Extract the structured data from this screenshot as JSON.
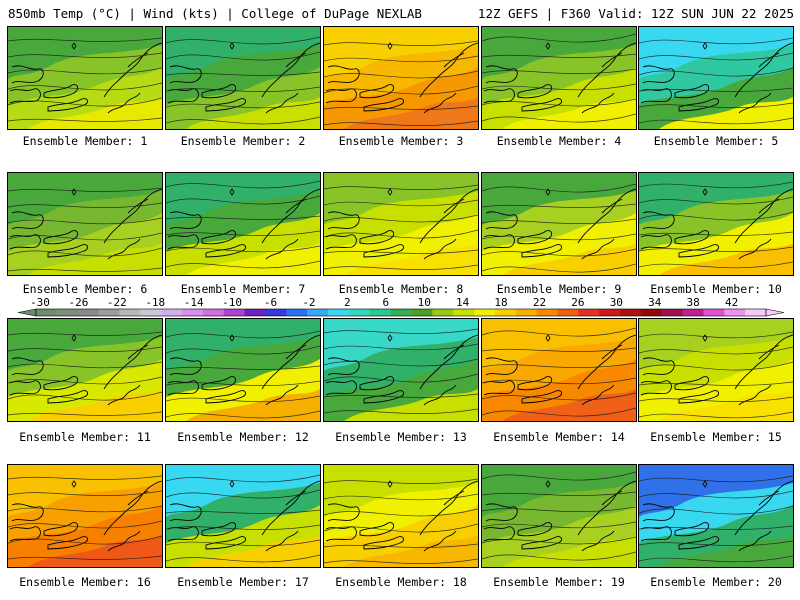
{
  "header": {
    "left": "850mb Temp (°C) | Wind (kts) | College of DuPage NEXLAB",
    "right": "12Z GEFS | F360 Valid: 12Z SUN JUN 22 2025"
  },
  "colorbar": {
    "labels": [
      "-30",
      "-26",
      "-22",
      "-18",
      "-14",
      "-10",
      "-6",
      "-2",
      "2",
      "6",
      "10",
      "14",
      "18",
      "22",
      "26",
      "30",
      "34",
      "38",
      "42"
    ],
    "colors": [
      "#6e8c6e",
      "#7a917a",
      "#8a8a8a",
      "#9d9d9d",
      "#b8b8b8",
      "#c8c8d8",
      "#d0b0e8",
      "#d890f0",
      "#d070e0",
      "#b040d0",
      "#7020c0",
      "#3838e0",
      "#2870f0",
      "#38a8f8",
      "#38d8f0",
      "#30d8c0",
      "#28c890",
      "#30b050",
      "#48a028",
      "#98c810",
      "#c8e000",
      "#f0f000",
      "#f8d000",
      "#f8b000",
      "#f88800",
      "#f06010",
      "#e83020",
      "#d01818",
      "#b01010",
      "#900808",
      "#a01050",
      "#c02090",
      "#e050d0",
      "#f090f0",
      "#f8c8f8"
    ]
  },
  "panels": [
    {
      "label": "Ensemble Member: 1",
      "palette": [
        "#48a83c",
        "#88c428",
        "#b8dc14",
        "#e8e800"
      ]
    },
    {
      "label": "Ensemble Member: 2",
      "palette": [
        "#30b068",
        "#48a83c",
        "#88c428",
        "#c8e000"
      ]
    },
    {
      "label": "Ensemble Member: 3",
      "palette": [
        "#f8d000",
        "#f8b800",
        "#f89800",
        "#f07818"
      ]
    },
    {
      "label": "Ensemble Member: 4",
      "palette": [
        "#48a83c",
        "#88c428",
        "#c8e000",
        "#f0f000"
      ]
    },
    {
      "label": "Ensemble Member: 5",
      "palette": [
        "#38d8f0",
        "#30c8a0",
        "#48a83c",
        "#f0f000"
      ]
    },
    {
      "label": "Ensemble Member: 6",
      "palette": [
        "#48a83c",
        "#78b830",
        "#a8d020",
        "#c8e000"
      ]
    },
    {
      "label": "Ensemble Member: 7",
      "palette": [
        "#30b068",
        "#48a83c",
        "#c8e000",
        "#f0f000"
      ]
    },
    {
      "label": "Ensemble Member: 8",
      "palette": [
        "#88c428",
        "#c8e000",
        "#f0f000",
        "#f8e000"
      ]
    },
    {
      "label": "Ensemble Member: 9",
      "palette": [
        "#48a83c",
        "#a8d020",
        "#f0f000",
        "#f8d000"
      ]
    },
    {
      "label": "Ensemble Member: 10",
      "palette": [
        "#30b068",
        "#88c428",
        "#f0f000",
        "#f8c000"
      ]
    },
    {
      "label": "Ensemble Member: 11",
      "palette": [
        "#48a83c",
        "#88c428",
        "#d8e800",
        "#f8d000"
      ]
    },
    {
      "label": "Ensemble Member: 12",
      "palette": [
        "#30b068",
        "#48a83c",
        "#f0f000",
        "#f8b000"
      ]
    },
    {
      "label": "Ensemble Member: 13",
      "palette": [
        "#38d8c8",
        "#30b068",
        "#48a83c",
        "#c8e000"
      ]
    },
    {
      "label": "Ensemble Member: 14",
      "palette": [
        "#f8c000",
        "#f8a800",
        "#f88800",
        "#f06018"
      ]
    },
    {
      "label": "Ensemble Member: 15",
      "palette": [
        "#a8d020",
        "#c8e000",
        "#f0f000",
        "#f8e000"
      ]
    },
    {
      "label": "Ensemble Member: 16",
      "palette": [
        "#f8c000",
        "#f8a000",
        "#f88000",
        "#f05818"
      ]
    },
    {
      "label": "Ensemble Member: 17",
      "palette": [
        "#38d8f0",
        "#30b068",
        "#c8e000",
        "#f8d000"
      ]
    },
    {
      "label": "Ensemble Member: 18",
      "palette": [
        "#c8e000",
        "#f0f000",
        "#f8d000",
        "#f8b800"
      ]
    },
    {
      "label": "Ensemble Member: 19",
      "palette": [
        "#48a83c",
        "#78b830",
        "#a8d020",
        "#c8e000"
      ]
    },
    {
      "label": "Ensemble Member: 20",
      "palette": [
        "#3070e8",
        "#38d8f0",
        "#30b068",
        "#48a83c"
      ]
    }
  ]
}
